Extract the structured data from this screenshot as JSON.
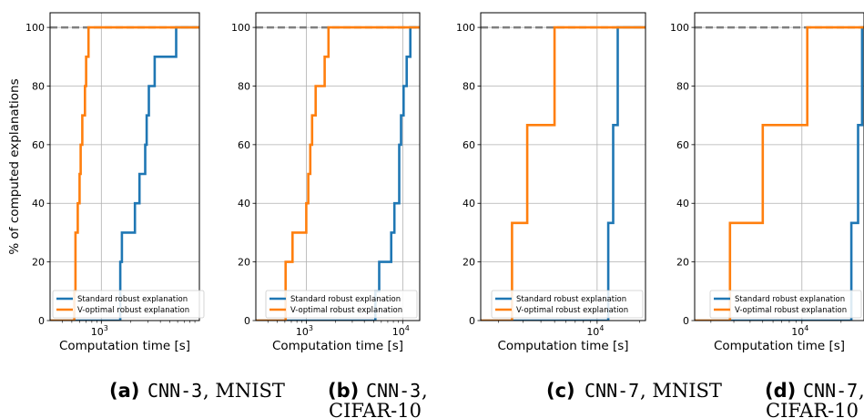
{
  "chart_data": [
    {
      "type": "line",
      "subtitle_tag": "(a)",
      "subtitle_rest": [
        "CNN-3",
        ", MNIST"
      ],
      "xlabel": "Computation time [s]",
      "ylabel": "% of computed explanations",
      "xscale": "log",
      "xlim": [
        300,
        10000
      ],
      "ylim": [
        0,
        105
      ],
      "yticks": [
        0,
        20,
        40,
        60,
        80,
        100
      ],
      "xticks": [
        {
          "value": 1000,
          "base": "10",
          "exp": "3"
        }
      ],
      "reference_line": 100,
      "grid": true,
      "legend_position": "lower-left",
      "series": [
        {
          "name": "Standard robust explanation",
          "color": "#1f77b4",
          "x": [
            300,
            1560,
            1560,
            1620,
            1620,
            2200,
            2200,
            2450,
            2450,
            2800,
            2800,
            2900,
            2900,
            3050,
            3050,
            3500,
            3500,
            5800,
            5800,
            10000
          ],
          "y": [
            0,
            0,
            20,
            20,
            30,
            30,
            40,
            40,
            50,
            50,
            60,
            60,
            70,
            70,
            80,
            80,
            90,
            90,
            100,
            100
          ]
        },
        {
          "name": "V-optimal robust explanation",
          "color": "#ff7f0e",
          "x": [
            300,
            530,
            530,
            545,
            545,
            575,
            575,
            600,
            600,
            615,
            615,
            640,
            640,
            680,
            680,
            700,
            700,
            740,
            740,
            10000
          ],
          "y": [
            0,
            0,
            10,
            10,
            30,
            30,
            40,
            40,
            50,
            50,
            60,
            60,
            70,
            70,
            80,
            80,
            90,
            90,
            100,
            100
          ]
        }
      ]
    },
    {
      "type": "line",
      "subtitle_tag": "(b)",
      "subtitle_rest": [
        "CNN-3",
        ",",
        "CIFAR-10"
      ],
      "xlabel": "Computation time [s]",
      "ylabel": "",
      "xscale": "log",
      "xlim": [
        300,
        15000
      ],
      "ylim": [
        0,
        105
      ],
      "yticks": [
        0,
        20,
        40,
        60,
        80,
        100
      ],
      "xticks": [
        {
          "value": 1000,
          "base": "10",
          "exp": "3"
        },
        {
          "value": 10000,
          "base": "10",
          "exp": "4"
        }
      ],
      "reference_line": 100,
      "grid": true,
      "legend_position": "lower-right",
      "series": [
        {
          "name": "Standard robust explanation",
          "color": "#1f77b4",
          "x": [
            300,
            5200,
            5200,
            5700,
            5700,
            7600,
            7600,
            8200,
            8200,
            9200,
            9200,
            9600,
            9600,
            10200,
            10200,
            11000,
            11000,
            12000,
            12000,
            15000
          ],
          "y": [
            0,
            0,
            10,
            10,
            20,
            20,
            30,
            30,
            40,
            40,
            60,
            60,
            70,
            70,
            80,
            80,
            90,
            90,
            100,
            100
          ]
        },
        {
          "name": "V-optimal robust explanation",
          "color": "#ff7f0e",
          "x": [
            300,
            610,
            610,
            720,
            720,
            1000,
            1000,
            1050,
            1050,
            1100,
            1100,
            1150,
            1150,
            1250,
            1250,
            1550,
            1550,
            1700,
            1700,
            1900,
            1900,
            15000
          ],
          "y": [
            0,
            0,
            20,
            20,
            30,
            30,
            40,
            40,
            50,
            50,
            60,
            60,
            70,
            70,
            80,
            80,
            90,
            90,
            100,
            100,
            100,
            100
          ]
        }
      ]
    },
    {
      "type": "line",
      "subtitle_tag": "(c)",
      "subtitle_rest": [
        "CNN-7",
        ", MNIST"
      ],
      "xlabel": "Computation time [s]",
      "ylabel": "",
      "xscale": "log",
      "xlim": [
        1500,
        22000
      ],
      "ylim": [
        0,
        105
      ],
      "yticks": [
        0,
        20,
        40,
        60,
        80,
        100
      ],
      "xticks": [
        {
          "value": 10000,
          "base": "10",
          "exp": "4"
        }
      ],
      "reference_line": 100,
      "grid": true,
      "legend_position": "lower-right",
      "series": [
        {
          "name": "Standard robust explanation",
          "color": "#1f77b4",
          "x": [
            1500,
            12000,
            12000,
            13000,
            13000,
            14000,
            14000,
            22000
          ],
          "y": [
            0,
            0,
            33.3,
            33.3,
            66.7,
            66.7,
            100,
            100
          ]
        },
        {
          "name": "V-optimal robust explanation",
          "color": "#ff7f0e",
          "x": [
            1500,
            2500,
            2500,
            3200,
            3200,
            5000,
            5000,
            22000
          ],
          "y": [
            0,
            0,
            33.3,
            33.3,
            66.7,
            66.7,
            100,
            100
          ]
        }
      ]
    },
    {
      "type": "line",
      "subtitle_tag": "(d)",
      "subtitle_rest": [
        "CNN-7",
        ",",
        "CIFAR-10"
      ],
      "xlabel": "Computation time [s]",
      "ylabel": "",
      "xscale": "log",
      "xlim": [
        1500,
        30000
      ],
      "ylim": [
        0,
        105
      ],
      "yticks": [
        0,
        20,
        40,
        60,
        80,
        100
      ],
      "xticks": [
        {
          "value": 10000,
          "base": "10",
          "exp": "4"
        }
      ],
      "reference_line": 100,
      "grid": true,
      "legend_position": "lower-right",
      "series": [
        {
          "name": "Standard robust explanation",
          "color": "#1f77b4",
          "x": [
            1500,
            24000,
            24000,
            27000,
            27000,
            29000,
            29000,
            30000
          ],
          "y": [
            0,
            0,
            33.3,
            33.3,
            66.7,
            66.7,
            100,
            100
          ]
        },
        {
          "name": "V-optimal robust explanation",
          "color": "#ff7f0e",
          "x": [
            1500,
            2800,
            2800,
            5000,
            5000,
            11000,
            11000,
            30000
          ],
          "y": [
            0,
            0,
            33.3,
            33.3,
            66.7,
            66.7,
            100,
            100
          ]
        }
      ]
    }
  ]
}
